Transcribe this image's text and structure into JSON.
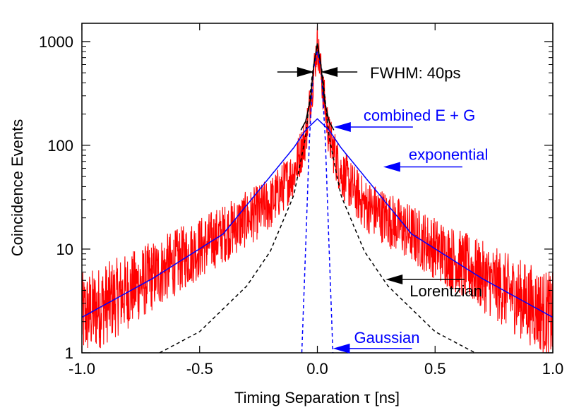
{
  "chart_data": {
    "type": "line",
    "xlabel": "Timing Separation τ [ns]",
    "ylabel": "Coincidence Events",
    "xlim": [
      -1.0,
      1.0
    ],
    "ylim": [
      1,
      1500
    ],
    "yscale": "log",
    "grid": false,
    "x_ticks": [
      {
        "value": -1.0,
        "label": "-1.0"
      },
      {
        "value": -0.5,
        "label": "-0.5"
      },
      {
        "value": 0.0,
        "label": "0.0"
      },
      {
        "value": 0.5,
        "label": "0.5"
      },
      {
        "value": 1.0,
        "label": "1.0"
      }
    ],
    "y_ticks": [
      {
        "value": 1,
        "label": "1"
      },
      {
        "value": 10,
        "label": "10"
      },
      {
        "value": 100,
        "label": "100"
      },
      {
        "value": 1000,
        "label": "1000"
      }
    ],
    "series": [
      {
        "name": "",
        "color": "#ff0000",
        "style": "noisy-data",
        "x": [
          -1.0,
          -0.8,
          -0.6,
          -0.4,
          -0.2,
          -0.1,
          -0.05,
          -0.02,
          0.0,
          0.02,
          0.05,
          0.1,
          0.2,
          0.4,
          0.6,
          0.8,
          1.0
        ],
        "y": [
          2.2,
          4.0,
          7.5,
          14,
          27,
          55,
          120,
          400,
          960,
          400,
          120,
          55,
          27,
          14,
          7.5,
          4.0,
          2.2
        ]
      },
      {
        "name": "combined E + G",
        "color": "#000000",
        "style": "solid",
        "x": [
          -0.07,
          -0.05,
          -0.03,
          -0.015,
          0.0,
          0.015,
          0.03,
          0.05,
          0.07
        ],
        "y": [
          140,
          170,
          270,
          600,
          960,
          600,
          270,
          170,
          140
        ]
      },
      {
        "name": "exponential",
        "color": "#0000ff",
        "style": "solid",
        "x": [
          -1.0,
          -0.7,
          -0.4,
          -0.1,
          -0.05,
          0.0,
          0.05,
          0.1,
          0.4,
          0.7,
          1.0
        ],
        "y": [
          2.2,
          5.2,
          14,
          95,
          140,
          180,
          140,
          95,
          14,
          5.2,
          2.2
        ]
      },
      {
        "name": "Gaussian",
        "color": "#0000ff",
        "style": "dashed",
        "x": [
          -0.066,
          -0.05,
          -0.034,
          -0.017,
          0.0,
          0.017,
          0.034,
          0.05,
          0.066
        ],
        "y": [
          1,
          10,
          110,
          540,
          800,
          540,
          110,
          10,
          1
        ]
      },
      {
        "name": "Lorentzian",
        "color": "#000000",
        "style": "dashed",
        "x": [
          -0.67,
          -0.5,
          -0.3,
          -0.2,
          -0.1,
          -0.05,
          -0.02,
          0.0,
          0.02,
          0.05,
          0.1,
          0.2,
          0.3,
          0.5,
          0.67
        ],
        "y": [
          1,
          1.6,
          4.4,
          9.5,
          33,
          120,
          520,
          900,
          520,
          120,
          33,
          9.5,
          4.4,
          1.6,
          1
        ]
      }
    ],
    "annotations": [
      {
        "text": "FWHM: 40ps",
        "color": "#000000",
        "arrow_tip": [
          -0.01,
          700
        ]
      },
      {
        "text": "combined E + G",
        "color": "#0000ff",
        "arrow_tip": [
          0.07,
          150
        ]
      },
      {
        "text": "exponential",
        "color": "#0000ff",
        "arrow_tip": [
          0.28,
          62
        ]
      },
      {
        "text": "Lorentzian",
        "color": "#000000",
        "arrow_tip": [
          0.29,
          5.1
        ]
      },
      {
        "text": "Gaussian",
        "color": "#0000ff",
        "arrow_tip": [
          0.066,
          1.1
        ]
      }
    ]
  }
}
